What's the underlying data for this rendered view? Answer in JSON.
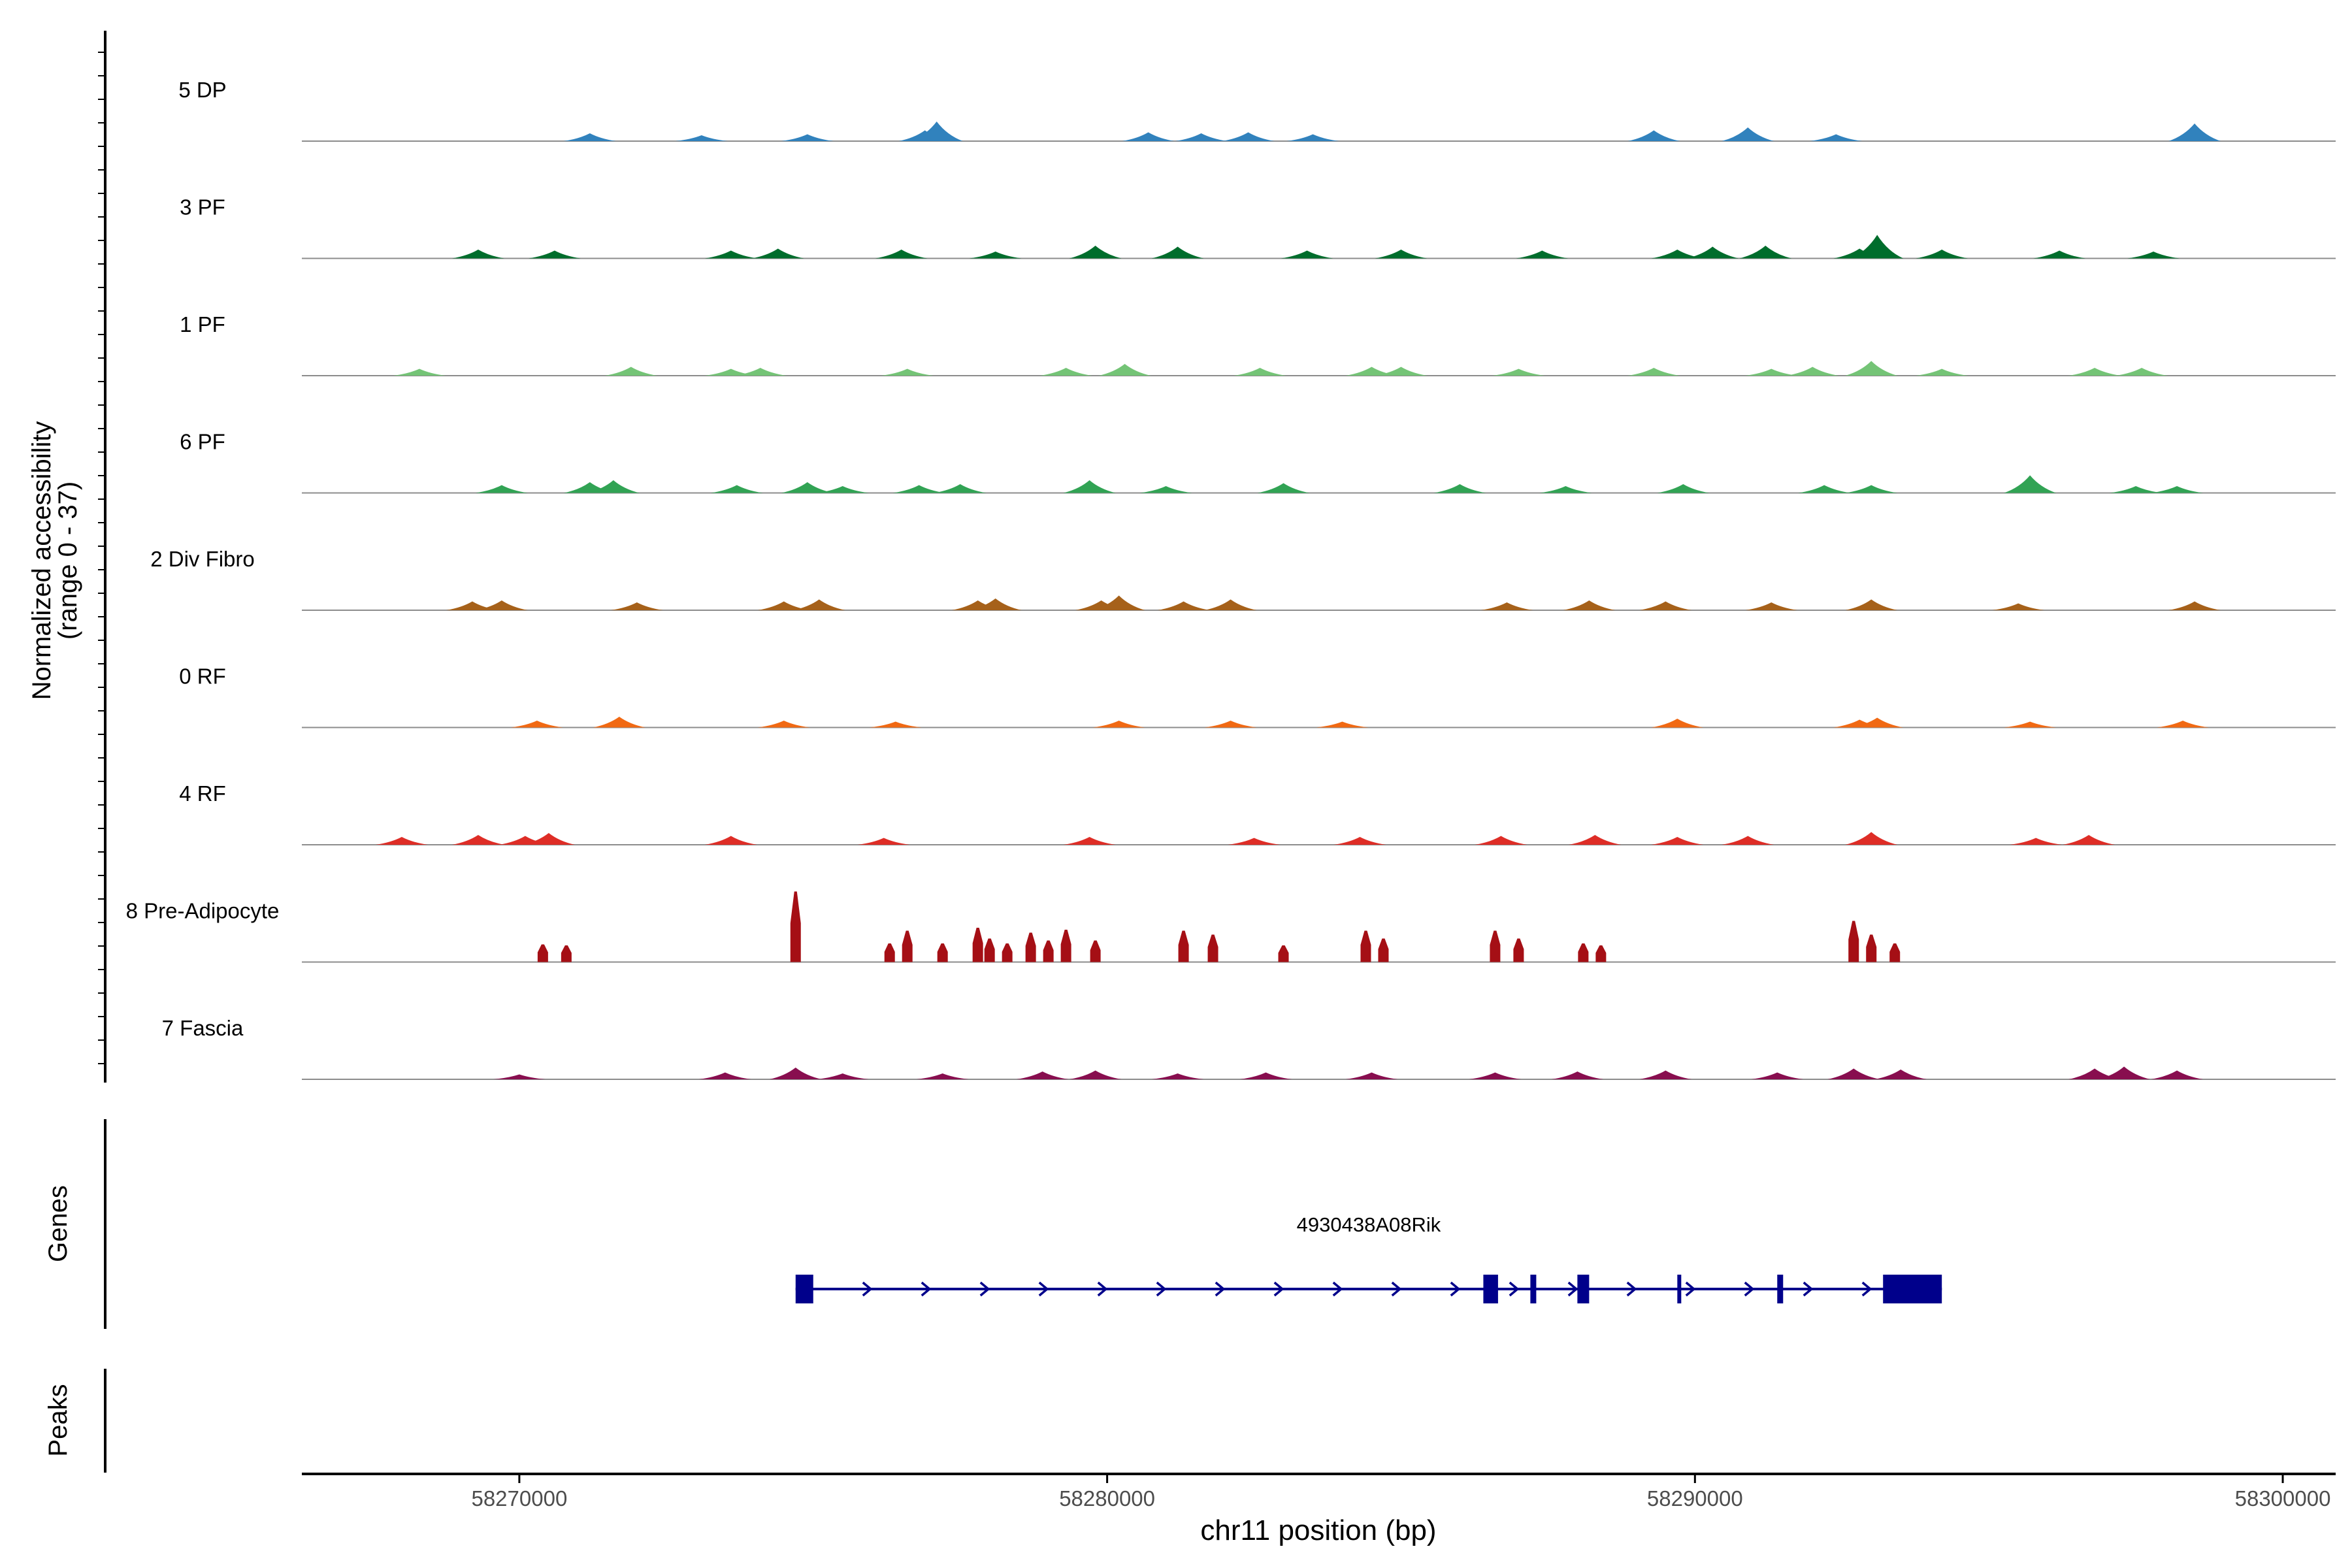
{
  "chart_data": {
    "type": "area",
    "title": "",
    "ylabel_line1": "Normalized accessibility",
    "ylabel_line2": "(range 0 - 37)",
    "ylim": [
      0,
      37
    ],
    "xlabel": "chr11 position (bp)",
    "xlim": [
      58266300,
      58300900
    ],
    "xticks": [
      58270000,
      58280000,
      58290000,
      58300000
    ],
    "xtick_labels": [
      "58270000",
      "58280000",
      "58290000",
      "58300000"
    ],
    "tracks": [
      {
        "name": "5 DP",
        "color": "#3182BD",
        "start": 58267800,
        "end": 58299200,
        "peaks": [
          [
            58271200,
            8
          ],
          [
            58273100,
            6
          ],
          [
            58274900,
            7
          ],
          [
            58276900,
            11
          ],
          [
            58277100,
            20
          ],
          [
            58280700,
            9
          ],
          [
            58281600,
            8
          ],
          [
            58282400,
            9
          ],
          [
            58283500,
            7
          ],
          [
            58289300,
            11
          ],
          [
            58290900,
            14
          ],
          [
            58292400,
            7
          ],
          [
            58298500,
            18
          ]
        ]
      },
      {
        "name": "3 PF",
        "color": "#006D2C",
        "start": 58268200,
        "end": 58299200,
        "peaks": [
          [
            58269300,
            9
          ],
          [
            58270600,
            8
          ],
          [
            58273600,
            8
          ],
          [
            58274400,
            10
          ],
          [
            58276500,
            9
          ],
          [
            58278100,
            7
          ],
          [
            58279800,
            13
          ],
          [
            58281200,
            12
          ],
          [
            58283400,
            8
          ],
          [
            58285000,
            9
          ],
          [
            58287400,
            8
          ],
          [
            58289700,
            9
          ],
          [
            58290300,
            12
          ],
          [
            58291200,
            13
          ],
          [
            58292800,
            10
          ],
          [
            58293100,
            24
          ],
          [
            58294200,
            9
          ],
          [
            58296200,
            8
          ],
          [
            58297800,
            7
          ]
        ]
      },
      {
        "name": "1 PF",
        "color": "#74C476",
        "start": 58267800,
        "end": 58298900,
        "peaks": [
          [
            58268300,
            7
          ],
          [
            58271900,
            9
          ],
          [
            58273600,
            7
          ],
          [
            58274100,
            8
          ],
          [
            58276600,
            7
          ],
          [
            58279300,
            8
          ],
          [
            58280300,
            12
          ],
          [
            58282600,
            8
          ],
          [
            58284500,
            9
          ],
          [
            58285000,
            9
          ],
          [
            58287000,
            7
          ],
          [
            58289300,
            8
          ],
          [
            58291300,
            7
          ],
          [
            58292000,
            9
          ],
          [
            58293000,
            15
          ],
          [
            58294200,
            7
          ],
          [
            58296800,
            8
          ],
          [
            58297600,
            8
          ]
        ]
      },
      {
        "name": "6 PF",
        "color": "#31A354",
        "start": 58268900,
        "end": 58299200,
        "peaks": [
          [
            58269700,
            8
          ],
          [
            58271200,
            11
          ],
          [
            58271600,
            13
          ],
          [
            58273700,
            8
          ],
          [
            58274900,
            11
          ],
          [
            58275500,
            7
          ],
          [
            58276800,
            8
          ],
          [
            58277500,
            9
          ],
          [
            58279700,
            13
          ],
          [
            58281000,
            7
          ],
          [
            58283000,
            10
          ],
          [
            58286000,
            9
          ],
          [
            58287800,
            7
          ],
          [
            58289800,
            9
          ],
          [
            58292200,
            8
          ],
          [
            58293000,
            8
          ],
          [
            58295700,
            18
          ],
          [
            58297500,
            7
          ],
          [
            58298200,
            7
          ]
        ]
      },
      {
        "name": "2 Div Fibro",
        "color": "#A6611A",
        "start": 58268500,
        "end": 58299200,
        "peaks": [
          [
            58269200,
            9
          ],
          [
            58269700,
            10
          ],
          [
            58272000,
            8
          ],
          [
            58274500,
            9
          ],
          [
            58275100,
            11
          ],
          [
            58277800,
            10
          ],
          [
            58278100,
            12
          ],
          [
            58279900,
            10
          ],
          [
            58280200,
            15
          ],
          [
            58281300,
            9
          ],
          [
            58282100,
            11
          ],
          [
            58286800,
            8
          ],
          [
            58288200,
            10
          ],
          [
            58289500,
            9
          ],
          [
            58291300,
            8
          ],
          [
            58293000,
            11
          ],
          [
            58295500,
            7
          ],
          [
            58298500,
            9
          ]
        ]
      },
      {
        "name": "0 RF",
        "color": "#F16913",
        "start": 58267800,
        "end": 58299200,
        "peaks": [
          [
            58270300,
            7
          ],
          [
            58271700,
            11
          ],
          [
            58274500,
            7
          ],
          [
            58276400,
            6
          ],
          [
            58280200,
            7
          ],
          [
            58282100,
            7
          ],
          [
            58284000,
            6
          ],
          [
            58289700,
            9
          ],
          [
            58292800,
            8
          ],
          [
            58293100,
            10
          ],
          [
            58295700,
            6
          ],
          [
            58298300,
            7
          ]
        ]
      },
      {
        "name": "4 RF",
        "color": "#DE2D26",
        "start": 58267800,
        "end": 58299200,
        "peaks": [
          [
            58268000,
            8
          ],
          [
            58269300,
            10
          ],
          [
            58270100,
            9
          ],
          [
            58270500,
            12
          ],
          [
            58273600,
            9
          ],
          [
            58276200,
            7
          ],
          [
            58279700,
            8
          ],
          [
            58282500,
            7
          ],
          [
            58284300,
            8
          ],
          [
            58286700,
            9
          ],
          [
            58288300,
            10
          ],
          [
            58289700,
            8
          ],
          [
            58290900,
            9
          ],
          [
            58293000,
            13
          ],
          [
            58295800,
            7
          ],
          [
            58296700,
            10
          ]
        ]
      },
      {
        "name": "8 Pre-Adipocyte",
        "color": "#A50F15",
        "start": 58270300,
        "end": 58293500,
        "peaks": [
          [
            58270400,
            18
          ],
          [
            58270800,
            17
          ],
          [
            58274700,
            72
          ],
          [
            58276300,
            19
          ],
          [
            58276600,
            32
          ],
          [
            58277200,
            19
          ],
          [
            58277800,
            35
          ],
          [
            58278000,
            24
          ],
          [
            58278300,
            19
          ],
          [
            58278700,
            30
          ],
          [
            58279000,
            22
          ],
          [
            58279300,
            33
          ],
          [
            58279800,
            22
          ],
          [
            58281300,
            32
          ],
          [
            58281800,
            28
          ],
          [
            58283000,
            17
          ],
          [
            58284400,
            32
          ],
          [
            58284700,
            24
          ],
          [
            58286600,
            32
          ],
          [
            58287000,
            24
          ],
          [
            58288100,
            19
          ],
          [
            58288400,
            17
          ],
          [
            58292700,
            42
          ],
          [
            58293000,
            28
          ],
          [
            58293400,
            19
          ]
        ]
      },
      {
        "name": "7 Fascia",
        "color": "#880E4F",
        "start": 58270000,
        "end": 58299000,
        "peaks": [
          [
            58270000,
            5
          ],
          [
            58273500,
            7
          ],
          [
            58274700,
            12
          ],
          [
            58275500,
            6
          ],
          [
            58277200,
            6
          ],
          [
            58278900,
            8
          ],
          [
            58279800,
            9
          ],
          [
            58281200,
            6
          ],
          [
            58282700,
            7
          ],
          [
            58284500,
            7
          ],
          [
            58286600,
            7
          ],
          [
            58288000,
            8
          ],
          [
            58289500,
            9
          ],
          [
            58291400,
            7
          ],
          [
            58292700,
            11
          ],
          [
            58293500,
            10
          ],
          [
            58296800,
            11
          ],
          [
            58297300,
            13
          ],
          [
            58298200,
            9
          ]
        ]
      }
    ],
    "genes_label": "Genes",
    "peaks_label": "Peaks",
    "gene": {
      "name": "4930438A08Rik",
      "start": 58274700,
      "end": 58294200,
      "strand": "+",
      "exons": [
        [
          58274700,
          58275000
        ],
        [
          58286400,
          58286650
        ],
        [
          58287200,
          58287300
        ],
        [
          58288000,
          58288200
        ],
        [
          58289700,
          58289750
        ],
        [
          58291400,
          58291500
        ],
        [
          58293200,
          58294200
        ]
      ]
    }
  }
}
